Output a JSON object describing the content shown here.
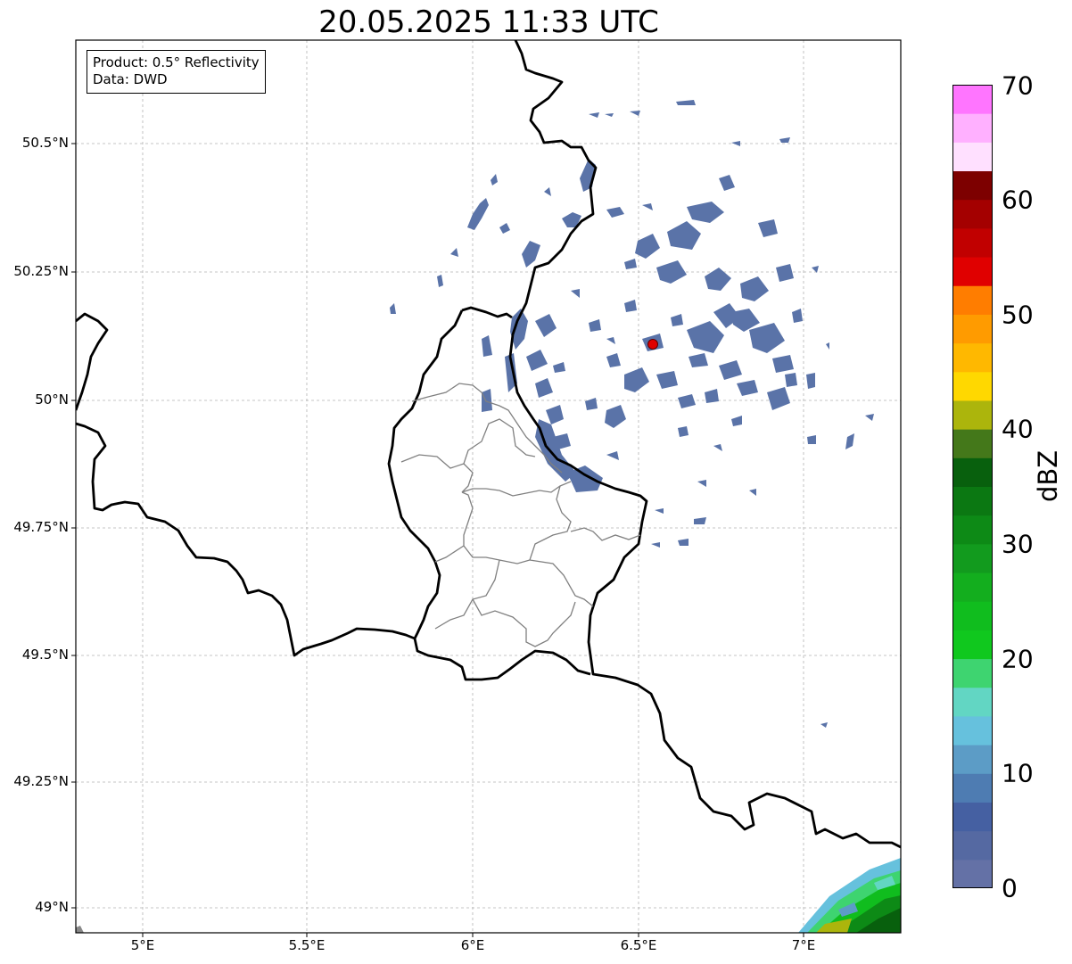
{
  "title": "20.05.2025 11:33 UTC",
  "info": {
    "product": "Product: 0.5° Reflectivity",
    "data": "Data: DWD"
  },
  "lat_labels": [
    "50.5°N",
    "50.25°N",
    "50°N",
    "49.75°N",
    "49.5°N",
    "49.25°N",
    "49°N"
  ],
  "lon_labels": [
    "5°E",
    "5.5°E",
    "6°E",
    "6.5°E",
    "7°E"
  ],
  "colorbar": {
    "label": "dBZ",
    "ticks": [
      "0",
      "10",
      "20",
      "30",
      "40",
      "50",
      "60",
      "70"
    ],
    "colors": [
      "#6471a6",
      "#5569a2",
      "#4560a2",
      "#4e7cb2",
      "#5c9cc6",
      "#66c1dd",
      "#62d6c3",
      "#3ed470",
      "#10c81e",
      "#10bd1e",
      "#13ae1e",
      "#129b1e",
      "#0d8a16",
      "#0b7812",
      "#08600d",
      "#44781a",
      "#acb50c",
      "#ffd800",
      "#ffb800",
      "#ff9b00",
      "#ff7d00",
      "#e00000",
      "#c10000",
      "#a40000",
      "#7d0000",
      "#ffe0ff",
      "#ffb0ff",
      "#ff75ff",
      "#ea3be9"
    ]
  },
  "radar_site": {
    "name": "radar-site-marker",
    "lon": 6.548,
    "lat": 50.11,
    "color": "#e00000"
  }
}
